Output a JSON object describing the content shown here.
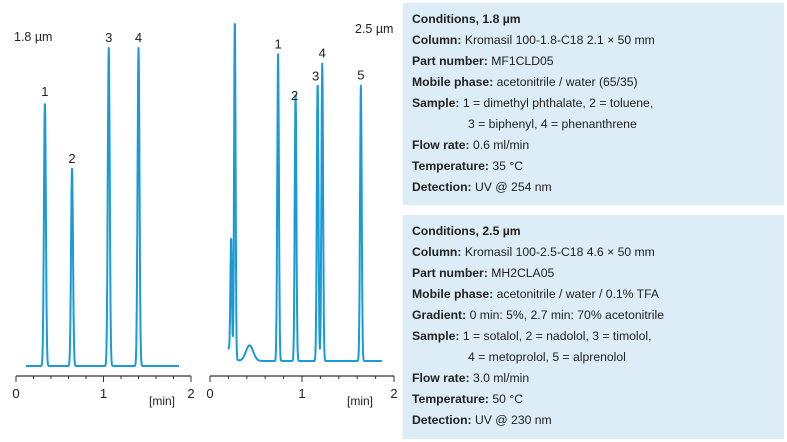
{
  "chart_data": [
    {
      "type": "line",
      "title": "1.8 µm",
      "xlabel": "[min]",
      "xlim": [
        0,
        2
      ],
      "xticks": [
        "0",
        "1",
        "2"
      ],
      "peaks": [
        {
          "label": "1",
          "rt": 0.33,
          "height": 0.83
        },
        {
          "label": "2",
          "rt": 0.64,
          "height": 0.62
        },
        {
          "label": "3",
          "rt": 1.06,
          "height": 1.0
        },
        {
          "label": "4",
          "rt": 1.4,
          "height": 1.0
        }
      ]
    },
    {
      "type": "line",
      "title": "2.5 µm",
      "xlabel": "[min]",
      "xlim": [
        0,
        2
      ],
      "xticks": [
        "0",
        "1",
        "2"
      ],
      "peaks": [
        {
          "label": "1",
          "rt": 0.74,
          "height": 0.98
        },
        {
          "label": "2",
          "rt": 0.93,
          "height": 0.86
        },
        {
          "label": "3",
          "rt": 1.17,
          "height": 0.89
        },
        {
          "label": "4",
          "rt": 1.22,
          "height": 0.95
        },
        {
          "label": "5",
          "rt": 1.64,
          "height": 0.88
        }
      ]
    }
  ],
  "panel1": {
    "title": "Conditions, 1.8 µm",
    "column_k": "Column:",
    "column_v": "Kromasil 100-1.8-C18 2.1 × 50 mm",
    "part_k": "Part number:",
    "part_v": "MF1CLD05",
    "mobile_k": "Mobile phase:",
    "mobile_v": "acetonitrile / water (65/35)",
    "sample_k": "Sample:",
    "sample_v1": "1 = dimethyl phthalate, 2 = toluene,",
    "sample_v2": "3 = biphenyl, 4 = phenanthrene",
    "flow_k": "Flow rate:",
    "flow_v": "0.6 ml/min",
    "temp_k": "Temperature:",
    "temp_v": "35 °C",
    "det_k": "Detection:",
    "det_v": "UV @ 254 nm"
  },
  "panel2": {
    "title": "Conditions, 2.5 µm",
    "column_k": "Column:",
    "column_v": "Kromasil 100-2.5-C18 4.6 × 50 mm",
    "part_k": "Part number:",
    "part_v": "MH2CLA05",
    "mobile_k": "Mobile phase:",
    "mobile_v": "acetonitrile / water / 0.1% TFA",
    "grad_k": "Gradient:",
    "grad_v": "0 min: 5%, 2.7 min: 70% acetonitrile",
    "sample_k": "Sample:",
    "sample_v1": "1 = sotalol, 2 = nadolol, 3 = timolol,",
    "sample_v2": "4 = metoprolol, 5 = alprenolol",
    "flow_k": "Flow rate:",
    "flow_v": "3.0 ml/min",
    "temp_k": "Temperature:",
    "temp_v": "50 °C",
    "det_k": "Detection:",
    "det_v": "UV @ 230 nm"
  }
}
